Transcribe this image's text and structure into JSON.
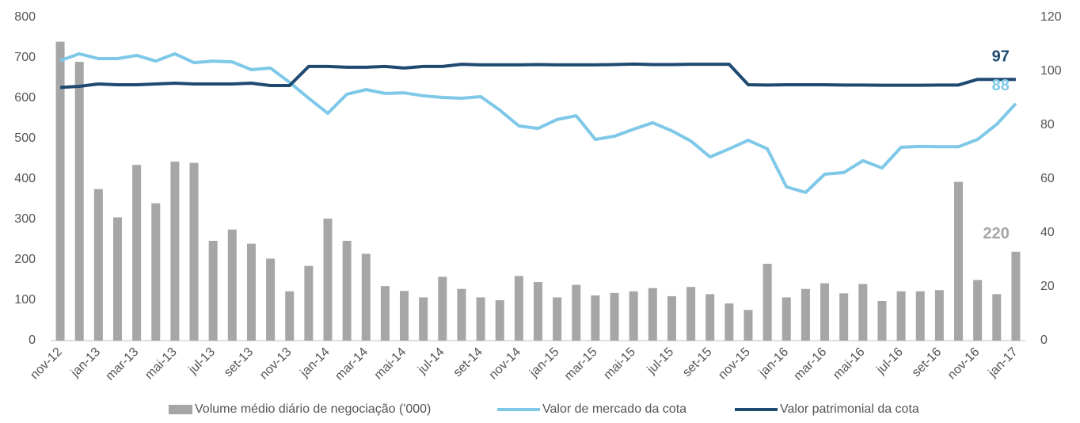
{
  "chart_data": {
    "type": "bar_line",
    "categories": [
      "nov-12",
      null,
      "jan-13",
      null,
      "mar-13",
      null,
      "mai-13",
      null,
      "jul-13",
      null,
      "set-13",
      null,
      "nov-13",
      null,
      "jan-14",
      null,
      "mar-14",
      null,
      "mai-14",
      null,
      "jul-14",
      null,
      "set-14",
      null,
      "nov-14",
      null,
      "jan-15",
      null,
      "mar-15",
      null,
      "mai-15",
      null,
      "jul-15",
      null,
      "set-15",
      null,
      "nov-15",
      null,
      "jan-16",
      null,
      "mar-16",
      null,
      "mai-16",
      null,
      "jul-16",
      null,
      "set-16",
      null,
      "nov-16",
      null,
      "jan-17"
    ],
    "series": [
      {
        "name": "Volume médio diário de negociação ('000)",
        "type": "bar",
        "color": "#a6a6a6",
        "axis": "y",
        "values": [
          740,
          690,
          375,
          305,
          435,
          340,
          443,
          440,
          247,
          275,
          240,
          203,
          122,
          185,
          302,
          247,
          215,
          135,
          123,
          107,
          158,
          128,
          107,
          100,
          160,
          145,
          107,
          138,
          112,
          118,
          122,
          130,
          110,
          133,
          115,
          92,
          76,
          190,
          107,
          128,
          142,
          117,
          140,
          98,
          122,
          122,
          125,
          393,
          150,
          115,
          220
        ]
      },
      {
        "name": "Valor de mercado da cota",
        "type": "line",
        "color": "#7ec8e8",
        "axis": "y2",
        "values": [
          104,
          106.5,
          104.7,
          104.7,
          105.9,
          103.8,
          106.5,
          103.2,
          103.8,
          103.5,
          100.6,
          101.2,
          95.9,
          90,
          84.4,
          91.5,
          93.2,
          91.8,
          92,
          90.9,
          90.3,
          90,
          90.6,
          85.6,
          79.7,
          78.8,
          82.1,
          83.5,
          74.7,
          75.9,
          78.5,
          80.9,
          77.9,
          74.1,
          68.2,
          71.2,
          74.4,
          71.2,
          57.1,
          55,
          61.8,
          62.4,
          66.8,
          64.1,
          71.8,
          72.1,
          72,
          72,
          74.7,
          80.3,
          88
        ]
      },
      {
        "name": "Valor patrimonial da cota",
        "type": "line",
        "color": "#1f4a70",
        "axis": "y2",
        "values": [
          94,
          94.4,
          95.3,
          95,
          95,
          95.3,
          95.6,
          95.3,
          95.3,
          95.3,
          95.6,
          94.7,
          94.7,
          101.8,
          101.8,
          101.5,
          101.5,
          101.8,
          101.2,
          101.8,
          101.8,
          102.6,
          102.4,
          102.4,
          102.4,
          102.5,
          102.4,
          102.4,
          102.4,
          102.5,
          102.7,
          102.5,
          102.5,
          102.6,
          102.6,
          102.6,
          95,
          94.9,
          95,
          95,
          95,
          94.9,
          94.9,
          94.8,
          94.8,
          94.8,
          94.9,
          94.9,
          97,
          97,
          97
        ]
      }
    ],
    "ylim": [
      0,
      800
    ],
    "yticks": [
      0,
      100,
      200,
      300,
      400,
      500,
      600,
      700,
      800
    ],
    "y2lim": [
      0,
      120
    ],
    "y2ticks": [
      0,
      20,
      40,
      60,
      80,
      100,
      120
    ],
    "legend": "bottom"
  }
}
